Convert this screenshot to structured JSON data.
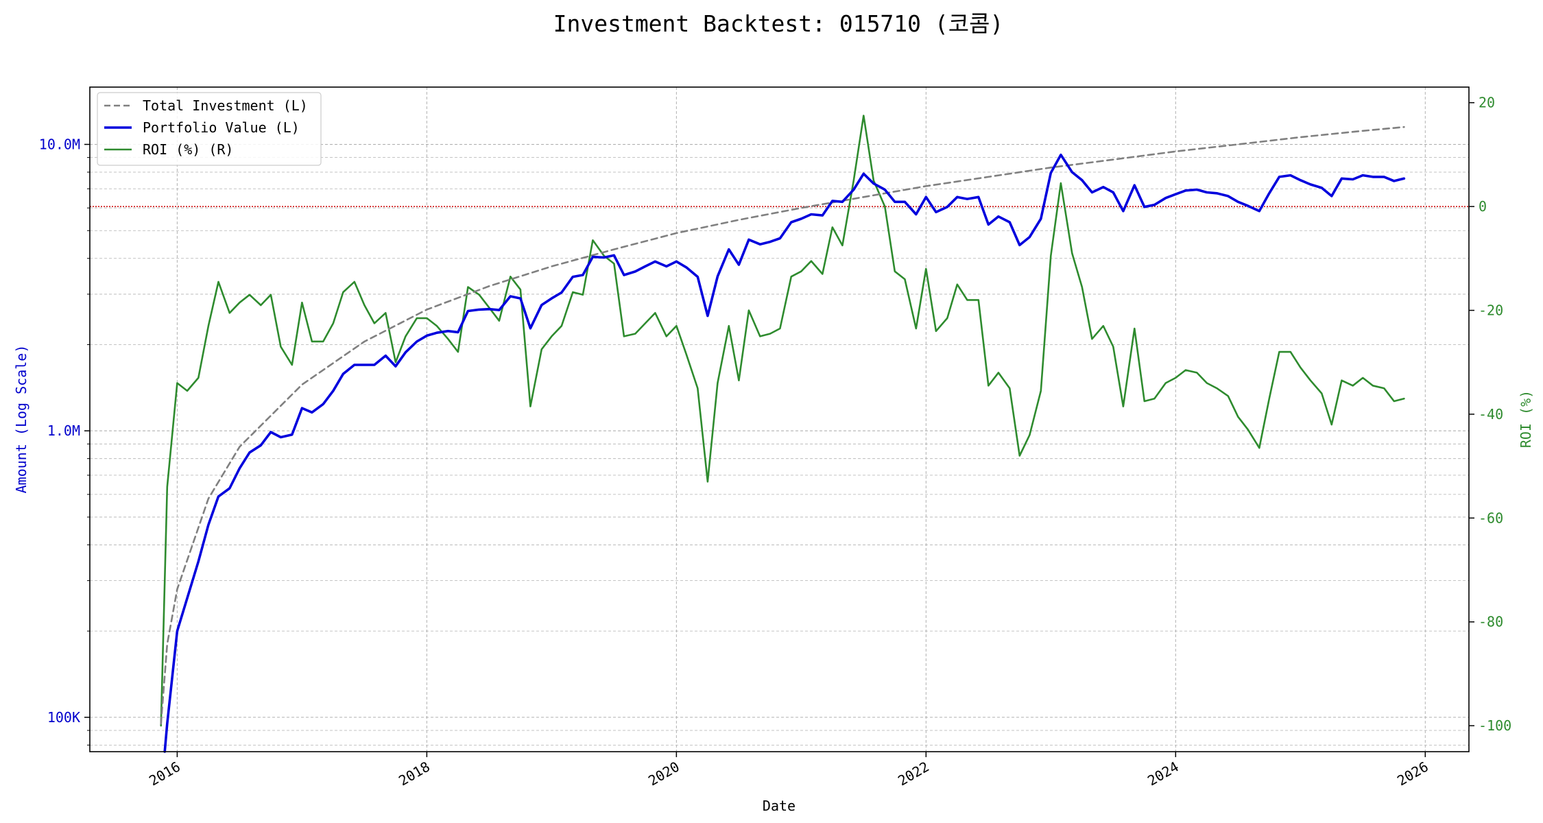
{
  "chart_data": {
    "type": "line",
    "title": "Investment Backtest: 015710 (코콤)",
    "xlabel": "Date",
    "ylabel_left": "Amount (Log Scale)",
    "ylabel_right": "ROI (%)",
    "x_ticks": [
      "2016",
      "2018",
      "2020",
      "2022",
      "2024",
      "2026"
    ],
    "y_left_ticks": [
      "100K",
      "1.0M",
      "10.0M"
    ],
    "y_right_ticks": [
      "20",
      "0",
      "-20",
      "-40",
      "-60",
      "-80",
      "-100"
    ],
    "xlim": [
      2015.3,
      2026.35
    ],
    "ylim_left_log10": [
      4.88,
      7.2
    ],
    "ylim_right": [
      -105,
      23
    ],
    "y_left_scale": "log",
    "grid": true,
    "legend_position": "top-left",
    "colors": {
      "total": "#808080",
      "portfolio": "#0000dd",
      "roi": "#2e8b2e",
      "zero_line": "#cc0000",
      "left_axis": "#0000cc",
      "right_axis": "#2e8b2e"
    },
    "legend": [
      "Total Investment (L)",
      "Portfolio Value (L)",
      "ROI (%) (R)"
    ],
    "series": [
      {
        "name": "Total Investment (L)",
        "axis": "left",
        "style": "dashed",
        "x": [
          2015.87,
          2015.92,
          2016.0,
          2016.25,
          2016.5,
          2017.0,
          2017.5,
          2018.0,
          2018.5,
          2019.0,
          2019.5,
          2020.0,
          2020.5,
          2021.0,
          2021.5,
          2022.0,
          2022.5,
          2023.0,
          2023.5,
          2024.0,
          2024.5,
          2025.0,
          2025.5,
          2025.83
        ],
        "y": [
          95000,
          180000,
          280000,
          580000,
          880000,
          1450000,
          2050000,
          2650000,
          3200000,
          3750000,
          4300000,
          4900000,
          5450000,
          6000000,
          6550000,
          7150000,
          7700000,
          8300000,
          8850000,
          9450000,
          10000000,
          10600000,
          11150000,
          11500000
        ]
      },
      {
        "name": "Portfolio Value (L)",
        "axis": "left",
        "style": "solid",
        "x": [
          2015.9,
          2015.92,
          2016.0,
          2016.17,
          2016.25,
          2016.33,
          2016.42,
          2016.5,
          2016.58,
          2016.67,
          2016.75,
          2016.83,
          2016.92,
          2017.0,
          2017.08,
          2017.17,
          2017.25,
          2017.33,
          2017.42,
          2017.5,
          2017.58,
          2017.67,
          2017.75,
          2017.83,
          2017.92,
          2018.0,
          2018.08,
          2018.17,
          2018.25,
          2018.33,
          2018.42,
          2018.5,
          2018.58,
          2018.67,
          2018.75,
          2018.83,
          2018.92,
          2019.0,
          2019.08,
          2019.17,
          2019.25,
          2019.33,
          2019.42,
          2019.5,
          2019.58,
          2019.67,
          2019.75,
          2019.83,
          2019.92,
          2020.0,
          2020.08,
          2020.17,
          2020.25,
          2020.33,
          2020.42,
          2020.5,
          2020.58,
          2020.67,
          2020.75,
          2020.83,
          2020.92,
          2021.0,
          2021.08,
          2021.17,
          2021.25,
          2021.33,
          2021.42,
          2021.5,
          2021.58,
          2021.67,
          2021.75,
          2021.83,
          2021.92,
          2022.0,
          2022.08,
          2022.17,
          2022.25,
          2022.33,
          2022.42,
          2022.5,
          2022.58,
          2022.67,
          2022.75,
          2022.83,
          2022.92,
          2023.0,
          2023.08,
          2023.17,
          2023.25,
          2023.33,
          2023.42,
          2023.5,
          2023.58,
          2023.67,
          2023.75,
          2023.83,
          2023.92,
          2024.0,
          2024.08,
          2024.17,
          2024.25,
          2024.33,
          2024.42,
          2024.5,
          2024.58,
          2024.67,
          2024.75,
          2024.83,
          2024.92,
          2025.0,
          2025.08,
          2025.17,
          2025.25,
          2025.33,
          2025.42,
          2025.5,
          2025.58,
          2025.67,
          2025.75,
          2025.83
        ],
        "y": [
          72000,
          95000,
          200000,
          350000,
          470000,
          590000,
          630000,
          740000,
          840000,
          890000,
          990000,
          950000,
          970000,
          1200000,
          1160000,
          1240000,
          1380000,
          1580000,
          1700000,
          1700000,
          1700000,
          1830000,
          1680000,
          1880000,
          2050000,
          2150000,
          2200000,
          2230000,
          2210000,
          2620000,
          2650000,
          2660000,
          2640000,
          2950000,
          2900000,
          2280000,
          2750000,
          2900000,
          3040000,
          3450000,
          3500000,
          4050000,
          4030000,
          4100000,
          3500000,
          3600000,
          3750000,
          3900000,
          3750000,
          3900000,
          3720000,
          3450000,
          2520000,
          3460000,
          4300000,
          3800000,
          4650000,
          4480000,
          4570000,
          4700000,
          5350000,
          5500000,
          5700000,
          5650000,
          6350000,
          6300000,
          6950000,
          7900000,
          7300000,
          6950000,
          6300000,
          6300000,
          5700000,
          6550000,
          5800000,
          6050000,
          6550000,
          6450000,
          6550000,
          5250000,
          5600000,
          5350000,
          4450000,
          4750000,
          5500000,
          7950000,
          9200000,
          8000000,
          7500000,
          6800000,
          7100000,
          6800000,
          5850000,
          7200000,
          6050000,
          6150000,
          6500000,
          6700000,
          6900000,
          6950000,
          6800000,
          6750000,
          6600000,
          6300000,
          6100000,
          5850000,
          6750000,
          7700000,
          7800000,
          7500000,
          7250000,
          7050000,
          6600000,
          7600000,
          7550000,
          7800000,
          7700000,
          7700000,
          7450000,
          7600000
        ]
      },
      {
        "name": "ROI (%) (R)",
        "axis": "right",
        "style": "solid",
        "x": [
          2015.87,
          2015.92,
          2016.0,
          2016.08,
          2016.17,
          2016.25,
          2016.33,
          2016.42,
          2016.5,
          2016.58,
          2016.67,
          2016.75,
          2016.83,
          2016.92,
          2017.0,
          2017.08,
          2017.17,
          2017.25,
          2017.33,
          2017.42,
          2017.5,
          2017.58,
          2017.67,
          2017.75,
          2017.83,
          2017.92,
          2018.0,
          2018.08,
          2018.17,
          2018.25,
          2018.33,
          2018.42,
          2018.5,
          2018.58,
          2018.67,
          2018.75,
          2018.83,
          2018.92,
          2019.0,
          2019.08,
          2019.17,
          2019.25,
          2019.33,
          2019.42,
          2019.5,
          2019.58,
          2019.67,
          2019.75,
          2019.83,
          2019.92,
          2020.0,
          2020.08,
          2020.17,
          2020.25,
          2020.33,
          2020.42,
          2020.5,
          2020.58,
          2020.67,
          2020.75,
          2020.83,
          2020.92,
          2021.0,
          2021.08,
          2021.17,
          2021.25,
          2021.33,
          2021.42,
          2021.5,
          2021.58,
          2021.67,
          2021.75,
          2021.83,
          2021.92,
          2022.0,
          2022.08,
          2022.17,
          2022.25,
          2022.33,
          2022.42,
          2022.5,
          2022.58,
          2022.67,
          2022.75,
          2022.83,
          2022.92,
          2023.0,
          2023.08,
          2023.17,
          2023.25,
          2023.33,
          2023.42,
          2023.5,
          2023.58,
          2023.67,
          2023.75,
          2023.83,
          2023.92,
          2024.0,
          2024.08,
          2024.17,
          2024.25,
          2024.33,
          2024.42,
          2024.5,
          2024.58,
          2024.67,
          2024.75,
          2024.83,
          2024.92,
          2025.0,
          2025.08,
          2025.17,
          2025.25,
          2025.33,
          2025.42,
          2025.5,
          2025.58,
          2025.67,
          2025.75,
          2025.83
        ],
        "y": [
          -100,
          -54,
          -34,
          -35.5,
          -33,
          -23,
          -14.5,
          -20.5,
          -18.5,
          -17,
          -19,
          -17,
          -27,
          -30.5,
          -18.5,
          -26,
          -26,
          -22.5,
          -16.5,
          -14.5,
          -19,
          -22.5,
          -20.5,
          -30,
          -25,
          -21.5,
          -21.5,
          -23,
          -25.5,
          -28,
          -15.5,
          -17,
          -19.5,
          -22,
          -13.5,
          -16,
          -38.5,
          -27.5,
          -25,
          -23,
          -16.5,
          -17,
          -6.5,
          -9.5,
          -11,
          -25,
          -24.5,
          -22.5,
          -20.5,
          -25,
          -23,
          -28.5,
          -35,
          -53,
          -34,
          -23,
          -33.5,
          -20,
          -25,
          -24.5,
          -23.5,
          -13.5,
          -12.5,
          -10.5,
          -13,
          -4,
          -7.5,
          5,
          17.5,
          5,
          0,
          -12.5,
          -14,
          -23.5,
          -12,
          -24,
          -21.5,
          -15,
          -18,
          -18,
          -34.5,
          -32,
          -35,
          -48,
          -44,
          -35.5,
          -9.5,
          4.5,
          -9,
          -15.5,
          -25.5,
          -23,
          -27,
          -38.5,
          -23.5,
          -37.5,
          -37,
          -34,
          -33,
          -31.5,
          -32,
          -34,
          -35,
          -36.5,
          -40.5,
          -43,
          -46.5,
          -37,
          -28,
          -28,
          -31,
          -33.5,
          -36,
          -42,
          -33.5,
          -34.5,
          -33,
          -34.5,
          -35,
          -37.5,
          -37
        ]
      }
    ]
  }
}
